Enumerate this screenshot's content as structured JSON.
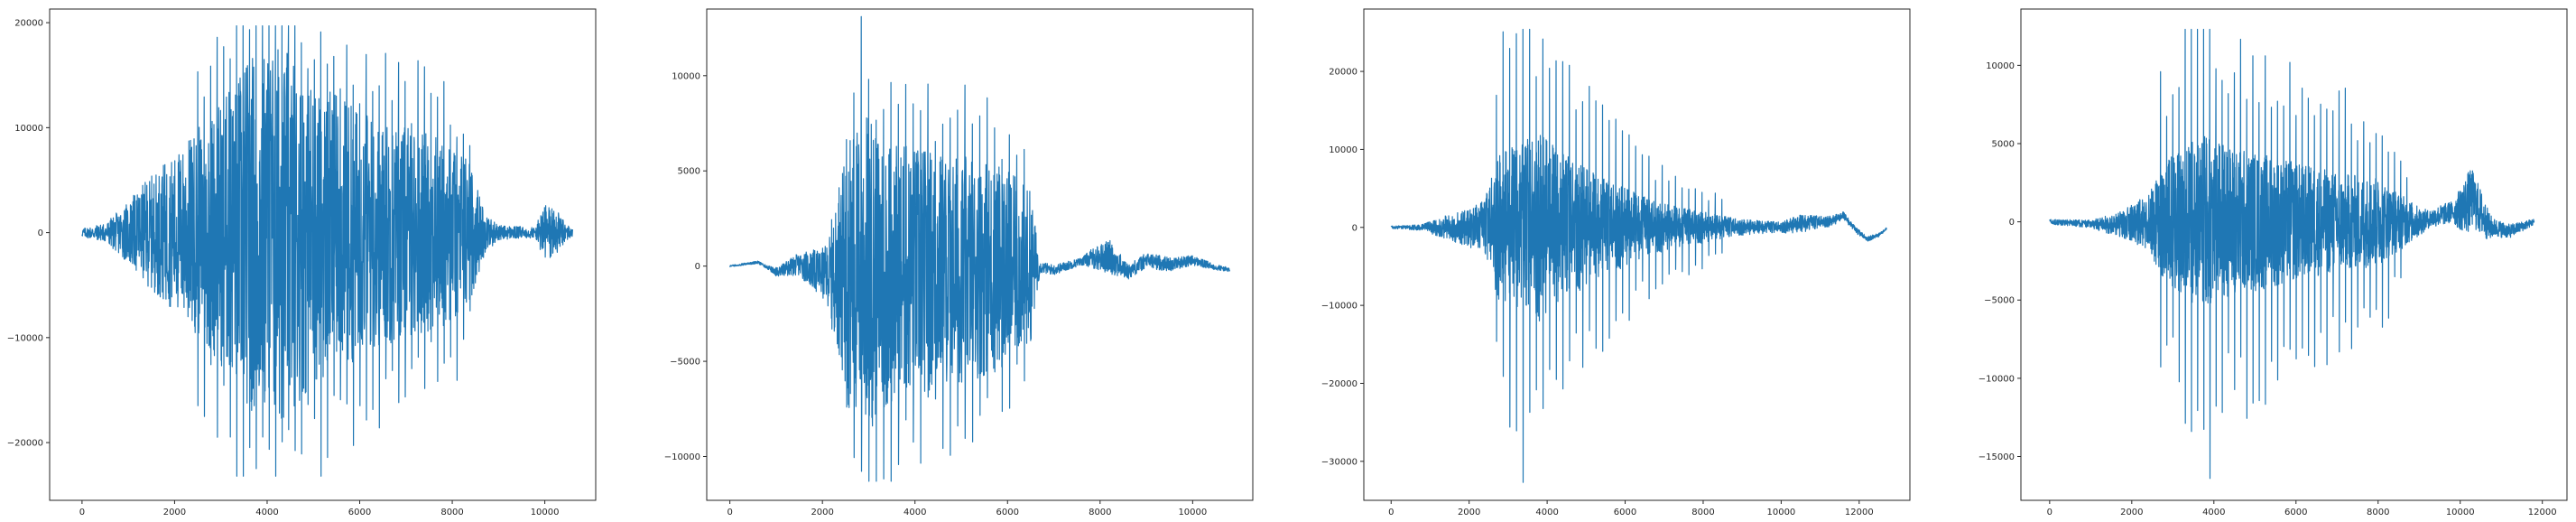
{
  "figure": {
    "line_color": "#1f77b4",
    "frame_color": "#262626",
    "background": "#ffffff"
  },
  "chart_data": [
    {
      "type": "line",
      "title": "",
      "xlabel": "",
      "ylabel": "",
      "grid": false,
      "legend": "none",
      "xlim": [
        -700,
        11100
      ],
      "ylim": [
        -25500,
        21300
      ],
      "xticks": [
        0,
        2000,
        4000,
        6000,
        8000,
        10000
      ],
      "yticks": [
        -20000,
        -10000,
        0,
        10000,
        20000
      ],
      "xtick_labels": [
        "0",
        "2000",
        "4000",
        "6000",
        "8000",
        "10000"
      ],
      "ytick_labels": [
        "−20000",
        "−10000",
        "0",
        "10000",
        "20000"
      ],
      "waveform": {
        "n": 10600,
        "envelope": [
          [
            0,
            400
          ],
          [
            500,
            900
          ],
          [
            900,
            2500
          ],
          [
            1400,
            5000
          ],
          [
            2000,
            7500
          ],
          [
            2500,
            10000
          ],
          [
            3200,
            14000
          ],
          [
            3700,
            17500
          ],
          [
            4200,
            18500
          ],
          [
            4800,
            15500
          ],
          [
            5500,
            13000
          ],
          [
            6500,
            11000
          ],
          [
            7500,
            9500
          ],
          [
            8300,
            8000
          ],
          [
            8700,
            2000
          ],
          [
            9000,
            700
          ],
          [
            9800,
            500
          ],
          [
            10000,
            3000
          ],
          [
            10200,
            2500
          ],
          [
            10450,
            900
          ],
          [
            10600,
            400
          ]
        ],
        "burst_start": 2500,
        "burst_end": 8500,
        "pulse_period": 140,
        "pulse_gain": 1.35,
        "max": 19700,
        "min": -23200,
        "slow_wave": []
      }
    },
    {
      "type": "line",
      "title": "",
      "xlabel": "",
      "ylabel": "",
      "grid": false,
      "legend": "none",
      "xlim": [
        -500,
        11300
      ],
      "ylim": [
        -12300,
        13500
      ],
      "xticks": [
        0,
        2000,
        4000,
        6000,
        8000,
        10000
      ],
      "yticks": [
        -10000,
        -5000,
        0,
        5000,
        10000
      ],
      "xtick_labels": [
        "0",
        "2000",
        "4000",
        "6000",
        "8000",
        "10000"
      ],
      "ytick_labels": [
        "−10000",
        "−5000",
        "0",
        "5000",
        "10000"
      ],
      "waveform": {
        "n": 10800,
        "envelope": [
          [
            0,
            40
          ],
          [
            800,
            80
          ],
          [
            1500,
            600
          ],
          [
            2100,
            1500
          ],
          [
            2300,
            3500
          ],
          [
            2600,
            7500
          ],
          [
            3000,
            8500
          ],
          [
            3500,
            7000
          ],
          [
            4200,
            6500
          ],
          [
            5000,
            6000
          ],
          [
            5800,
            5500
          ],
          [
            6500,
            4000
          ],
          [
            6700,
            300
          ],
          [
            7600,
            200
          ],
          [
            7900,
            600
          ],
          [
            8200,
            900
          ],
          [
            8600,
            400
          ],
          [
            9300,
            400
          ],
          [
            10800,
            100
          ]
        ],
        "burst_start": 2200,
        "burst_end": 6500,
        "pulse_period": 160,
        "pulse_gain": 1.3,
        "max": 13100,
        "min": -11300,
        "slow_wave": [
          [
            0,
            0
          ],
          [
            600,
            200
          ],
          [
            1000,
            -300
          ],
          [
            1500,
            100
          ],
          [
            2000,
            -400
          ],
          [
            6600,
            0
          ],
          [
            7000,
            -200
          ],
          [
            7400,
            100
          ],
          [
            7800,
            400
          ],
          [
            8200,
            500
          ],
          [
            8600,
            -300
          ],
          [
            9000,
            300
          ],
          [
            9500,
            100
          ],
          [
            10000,
            300
          ],
          [
            10400,
            0
          ],
          [
            10800,
            -200
          ]
        ]
      }
    },
    {
      "type": "line",
      "title": "",
      "xlabel": "",
      "ylabel": "",
      "grid": false,
      "legend": "none",
      "xlim": [
        -700,
        13300
      ],
      "ylim": [
        -35000,
        28000
      ],
      "xticks": [
        0,
        2000,
        4000,
        6000,
        8000,
        10000,
        12000
      ],
      "yticks": [
        -30000,
        -20000,
        -10000,
        0,
        10000,
        20000
      ],
      "xtick_labels": [
        "0",
        "2000",
        "4000",
        "6000",
        "8000",
        "10000",
        "12000"
      ],
      "ytick_labels": [
        "−30000",
        "−20000",
        "−10000",
        "0",
        "10000",
        "20000"
      ],
      "waveform": {
        "n": 12700,
        "envelope": [
          [
            0,
            150
          ],
          [
            800,
            400
          ],
          [
            1400,
            1500
          ],
          [
            2000,
            2500
          ],
          [
            2400,
            3500
          ],
          [
            2700,
            9000
          ],
          [
            3300,
            11000
          ],
          [
            3800,
            12000
          ],
          [
            4300,
            10000
          ],
          [
            5000,
            7500
          ],
          [
            6000,
            5000
          ],
          [
            7000,
            3000
          ],
          [
            8000,
            2000
          ],
          [
            9000,
            1000
          ],
          [
            10000,
            700
          ],
          [
            10500,
            1200
          ],
          [
            11000,
            800
          ],
          [
            11800,
            400
          ],
          [
            12300,
            300
          ],
          [
            12700,
            150
          ]
        ],
        "burst_start": 2700,
        "burst_end": 8500,
        "pulse_period": 170,
        "pulse_gain": 2.1,
        "max": 25400,
        "min": -32700,
        "slow_wave": [
          [
            0,
            0
          ],
          [
            10000,
            0
          ],
          [
            10600,
            500
          ],
          [
            11300,
            800
          ],
          [
            11600,
            1500
          ],
          [
            11900,
            -300
          ],
          [
            12200,
            -1500
          ],
          [
            12500,
            -1000
          ],
          [
            12700,
            -200
          ]
        ]
      }
    },
    {
      "type": "line",
      "title": "",
      "xlabel": "",
      "ylabel": "",
      "grid": false,
      "legend": "none",
      "xlim": [
        -700,
        12600
      ],
      "ylim": [
        -17800,
        13600
      ],
      "xticks": [
        0,
        2000,
        4000,
        6000,
        8000,
        10000,
        12000
      ],
      "yticks": [
        -15000,
        -10000,
        -5000,
        0,
        5000,
        10000
      ],
      "xtick_labels": [
        "0",
        "2000",
        "4000",
        "6000",
        "8000",
        "10000",
        "12000"
      ],
      "ytick_labels": [
        "−15000",
        "−10000",
        "−5000",
        "0",
        "5000",
        "10000"
      ],
      "waveform": {
        "n": 11800,
        "envelope": [
          [
            0,
            150
          ],
          [
            1000,
            250
          ],
          [
            1800,
            900
          ],
          [
            2400,
            1800
          ],
          [
            2700,
            3500
          ],
          [
            3300,
            5000
          ],
          [
            3800,
            5500
          ],
          [
            4300,
            5000
          ],
          [
            5000,
            4500
          ],
          [
            6000,
            3800
          ],
          [
            7000,
            3200
          ],
          [
            8000,
            2800
          ],
          [
            8700,
            1500
          ],
          [
            9200,
            600
          ],
          [
            9800,
            700
          ],
          [
            10200,
            2000
          ],
          [
            10500,
            1500
          ],
          [
            10800,
            600
          ],
          [
            11800,
            200
          ]
        ],
        "burst_start": 2700,
        "burst_end": 8700,
        "pulse_period": 150,
        "pulse_gain": 2.2,
        "max": 12300,
        "min": -16400,
        "slow_wave": [
          [
            0,
            0
          ],
          [
            1500,
            -200
          ],
          [
            2500,
            0
          ],
          [
            9000,
            0
          ],
          [
            10000,
            800
          ],
          [
            10300,
            1500
          ],
          [
            10700,
            -300
          ],
          [
            11200,
            -600
          ],
          [
            11800,
            0
          ]
        ]
      }
    }
  ]
}
